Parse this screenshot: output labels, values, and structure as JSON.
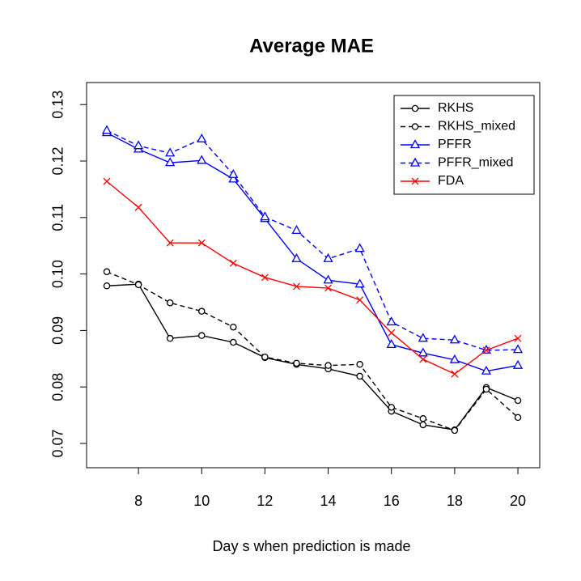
{
  "chart_data": {
    "type": "line",
    "title": "Average MAE",
    "xlabel": "Day s when prediction is made",
    "x": [
      7,
      8,
      9,
      10,
      11,
      12,
      13,
      14,
      15,
      16,
      17,
      18,
      19,
      20
    ],
    "series": [
      {
        "name": "RKHS",
        "color": "#000000",
        "dashed": false,
        "marker": "circle",
        "values": [
          0.0979,
          0.0982,
          0.0886,
          0.0891,
          0.0879,
          0.0852,
          0.084,
          0.0832,
          0.0819,
          0.0757,
          0.0733,
          0.0724,
          0.0799,
          0.0776
        ]
      },
      {
        "name": "RKHS_mixed",
        "color": "#000000",
        "dashed": true,
        "marker": "circle",
        "values": [
          0.1004,
          0.0981,
          0.0949,
          0.0934,
          0.0906,
          0.0853,
          0.0842,
          0.0838,
          0.084,
          0.0764,
          0.0744,
          0.0723,
          0.0796,
          0.0746
        ]
      },
      {
        "name": "PFFR",
        "color": "#0000ff",
        "dashed": false,
        "marker": "triangle",
        "values": [
          0.125,
          0.1221,
          0.1197,
          0.1201,
          0.1168,
          0.1098,
          0.1027,
          0.0989,
          0.0982,
          0.0875,
          0.086,
          0.0848,
          0.0828,
          0.0838
        ]
      },
      {
        "name": "PFFR_mixed",
        "color": "#0000ff",
        "dashed": true,
        "marker": "triangle",
        "values": [
          0.1254,
          0.1227,
          0.1214,
          0.1239,
          0.1176,
          0.1101,
          0.1077,
          0.1027,
          0.1045,
          0.0915,
          0.0886,
          0.0883,
          0.0865,
          0.0866
        ]
      },
      {
        "name": "FDA",
        "color": "#ff0000",
        "dashed": false,
        "marker": "x",
        "values": [
          0.1164,
          0.1118,
          0.1055,
          0.1055,
          0.1019,
          0.0994,
          0.0978,
          0.0975,
          0.0954,
          0.0896,
          0.0849,
          0.0823,
          0.0865,
          0.0886
        ]
      }
    ],
    "xlim": [
      6.36,
      20.69
    ],
    "xticks": [
      8,
      10,
      12,
      14,
      16,
      18,
      20
    ],
    "ylim": [
      0.0657,
      0.1339
    ],
    "yticks": [
      0.07,
      0.08,
      0.09,
      {
        "value": 0.1,
        "label": "0.10"
      },
      0.11,
      0.12,
      0.13
    ],
    "legend": "top-right"
  }
}
